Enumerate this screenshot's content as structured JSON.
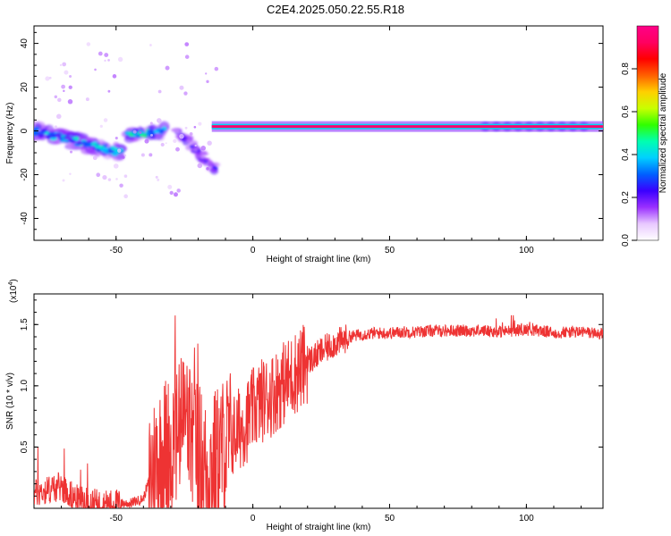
{
  "title": "C2E4.2025.050.22.55.R18",
  "chart_data": [
    {
      "type": "heatmap",
      "xlabel": "Height of straight line (km)",
      "ylabel": "Frequency (Hz)",
      "xlim": [
        -80,
        128
      ],
      "ylim": [
        -50,
        48
      ],
      "xticks": [
        -50,
        0,
        50,
        100
      ],
      "yticks": [
        -40,
        -20,
        0,
        20,
        40
      ],
      "colorbar": {
        "label": "Normalized spectral amplitude",
        "range": [
          0,
          1
        ],
        "ticks": [
          "0.0",
          "0.2",
          "0.4",
          "0.6",
          "0.8"
        ],
        "colors": [
          "#ffffff",
          "#e8c8ff",
          "#9a30ff",
          "#3a00ff",
          "#0060ff",
          "#00d0ff",
          "#00ffb0",
          "#30ff00",
          "#c8ff00",
          "#ffd000",
          "#ff6000",
          "#ff0000",
          "#ff0060",
          "#ff0088"
        ]
      },
      "features": [
        {
          "name": "steady line",
          "x": [
            -15,
            128
          ],
          "y": [
            2,
            2
          ],
          "amplitude": 0.95
        },
        {
          "name": "descending branch",
          "x": [
            -80,
            -48
          ],
          "y": [
            0,
            -10
          ],
          "amplitude": 0.35
        },
        {
          "name": "rising branch",
          "x": [
            -46,
            -32
          ],
          "y": [
            -2,
            0
          ],
          "amplitude": 0.4
        },
        {
          "name": "secondary descending branch",
          "x": [
            -28,
            -13
          ],
          "y": [
            0,
            -18
          ],
          "amplitude": 0.2
        }
      ]
    },
    {
      "type": "line",
      "xlabel": "Height of straight line (km)",
      "ylabel": "SNR (10 * v/v)",
      "yscale_label": "(x10",
      "yscale_exp": "4",
      "xlim": [
        -80,
        128
      ],
      "ylim": [
        0,
        1.75
      ],
      "xticks": [
        -50,
        0,
        50,
        100
      ],
      "yticks": [
        0.5,
        1.0,
        1.5
      ],
      "ytick_labels": [
        "0.5",
        "1.0",
        "1.5"
      ],
      "line_color": "#ee3333",
      "series": [
        {
          "x": [
            -80,
            -75,
            -70,
            -65,
            -60,
            -55,
            -50,
            -45,
            -40,
            -37,
            -35,
            -32,
            -30,
            -27,
            -25,
            -22,
            -20,
            -17,
            -15,
            -12,
            -10,
            -7,
            -5,
            -2,
            0,
            3,
            5,
            8,
            10,
            13,
            15,
            18,
            20,
            23,
            25,
            28,
            30,
            33,
            35,
            40,
            45,
            50,
            55,
            60,
            65,
            70,
            75,
            80,
            85,
            90,
            95,
            100,
            105,
            110,
            115,
            120,
            125,
            128
          ],
          "y": [
            0.12,
            0.15,
            0.18,
            0.08,
            0.05,
            0.03,
            0.04,
            0.04,
            0.08,
            0.3,
            0.4,
            0.5,
            0.5,
            0.6,
            0.75,
            0.55,
            0.45,
            0.3,
            0.35,
            0.45,
            0.52,
            0.6,
            0.65,
            0.72,
            0.8,
            0.88,
            0.9,
            0.95,
            1.0,
            1.05,
            1.1,
            1.15,
            1.2,
            1.24,
            1.28,
            1.32,
            1.35,
            1.37,
            1.4,
            1.42,
            1.43,
            1.43,
            1.44,
            1.44,
            1.45,
            1.45,
            1.45,
            1.45,
            1.45,
            1.44,
            1.45,
            1.46,
            1.45,
            1.43,
            1.44,
            1.44,
            1.43,
            1.42
          ]
        }
      ]
    }
  ]
}
